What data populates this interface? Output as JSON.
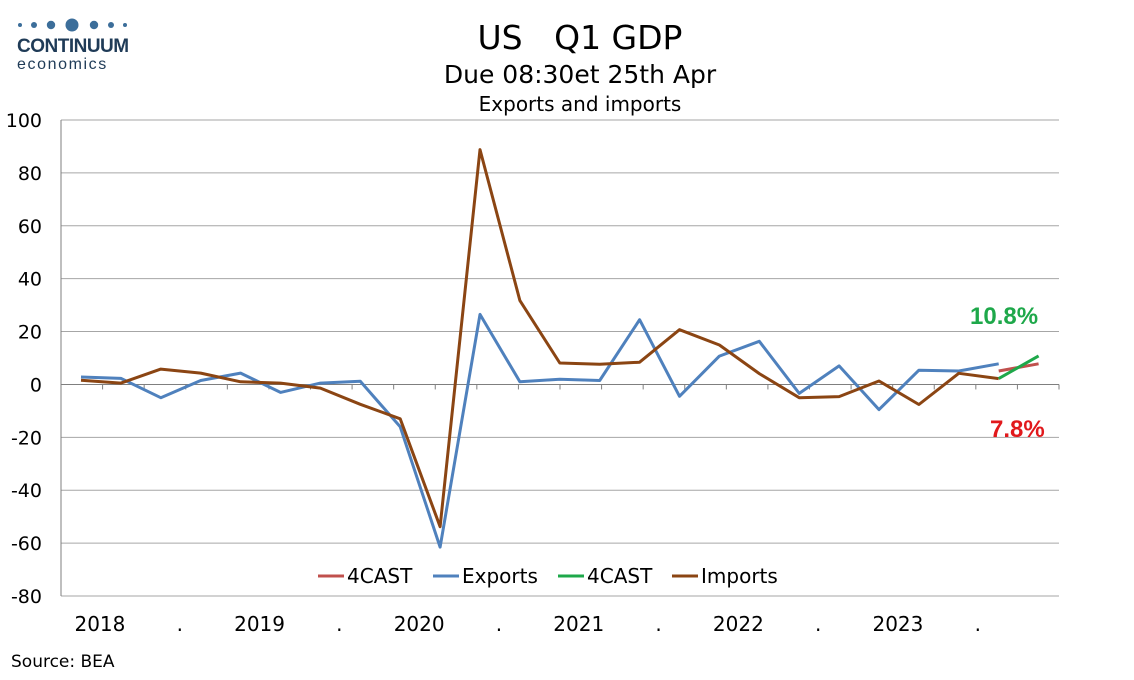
{
  "logo": {
    "word": "CONTINUUM",
    "sub": "economics",
    "dot_color": "#3c6e9a"
  },
  "header": {
    "title": "US   Q1 GDP",
    "subtitle": "Due 08:30et 25th Apr",
    "subtitle2": "Exports and imports"
  },
  "source": "Source: BEA",
  "annotations": {
    "green": "10.8%",
    "red": "7.8%"
  },
  "chart_data": {
    "type": "line",
    "ylim": [
      -80,
      100
    ],
    "yticks": [
      100,
      80,
      60,
      40,
      20,
      0,
      -20,
      -40,
      -60,
      -80
    ],
    "ytick_labels": [
      "100",
      "80",
      "60",
      "40",
      "20",
      "0",
      "-20",
      "-40",
      "-60",
      "-80"
    ],
    "grid": true,
    "legend_position": "bottom-center",
    "x_quarters": [
      "2018Q1",
      "2018Q2",
      "2018Q3",
      "2018Q4",
      "2019Q1",
      "2019Q2",
      "2019Q3",
      "2019Q4",
      "2020Q1",
      "2020Q2",
      "2020Q3",
      "2020Q4",
      "2021Q1",
      "2021Q2",
      "2021Q3",
      "2021Q4",
      "2022Q1",
      "2022Q2",
      "2022Q3",
      "2022Q4",
      "2023Q1",
      "2023Q2",
      "2023Q3",
      "2023Q4",
      "2024Q1"
    ],
    "xtick_labels": [
      "2018",
      ".",
      "2019",
      ".",
      "2020",
      ".",
      "2021",
      ".",
      "2022",
      ".",
      "2023",
      "."
    ],
    "series": [
      {
        "name": "4CAST",
        "color": "#c0504d",
        "start_index": 23,
        "values": [
          5.1,
          7.8
        ]
      },
      {
        "name": "Exports",
        "color": "#4f81bd",
        "start_index": 0,
        "values": [
          2.8,
          2.3,
          -5.0,
          1.5,
          4.3,
          -3.0,
          0.5,
          1.2,
          -16.0,
          -61.5,
          26.5,
          1.0,
          2.0,
          1.5,
          24.5,
          -4.5,
          10.7,
          16.3,
          -3.4,
          7.0,
          -9.5,
          5.4,
          5.1,
          7.8
        ]
      },
      {
        "name": "4CAST",
        "color": "#1ea84a",
        "start_index": 23,
        "values": [
          2.2,
          10.8
        ]
      },
      {
        "name": "Imports",
        "color": "#8b4513",
        "start_index": 0,
        "values": [
          1.6,
          0.5,
          5.8,
          4.3,
          1.0,
          0.5,
          -1.4,
          -7.5,
          -13.0,
          -53.8,
          88.8,
          31.7,
          8.1,
          7.6,
          8.4,
          20.7,
          14.9,
          4.1,
          -5.0,
          -4.6,
          1.3,
          -7.6,
          4.2,
          2.2
        ]
      }
    ]
  }
}
